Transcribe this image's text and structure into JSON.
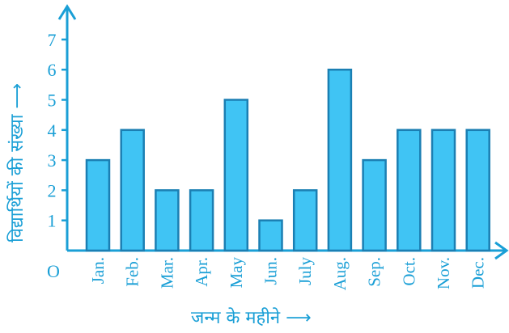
{
  "chart_data": {
    "type": "bar",
    "categories": [
      "Jan.",
      "Feb.",
      "Mar.",
      "Apr.",
      "May",
      "Jun.",
      "July",
      "Aug.",
      "Sep.",
      "Oct.",
      "Nov.",
      "Dec."
    ],
    "values": [
      3,
      4,
      2,
      2,
      5,
      1,
      2,
      6,
      3,
      4,
      4,
      4
    ],
    "title": "",
    "xlabel": "जन्म के महीने ⟶",
    "ylabel": "विद्यार्थियों की संख्या ⟶",
    "origin_label": "O",
    "y_ticks": [
      1,
      2,
      3,
      4,
      5,
      6,
      7
    ],
    "ylim": [
      0,
      8
    ],
    "grid": false,
    "colors": {
      "bar_fill": "#40c4f4",
      "bar_stroke": "#1b7fb3",
      "axis": "#1a9fd6"
    }
  }
}
